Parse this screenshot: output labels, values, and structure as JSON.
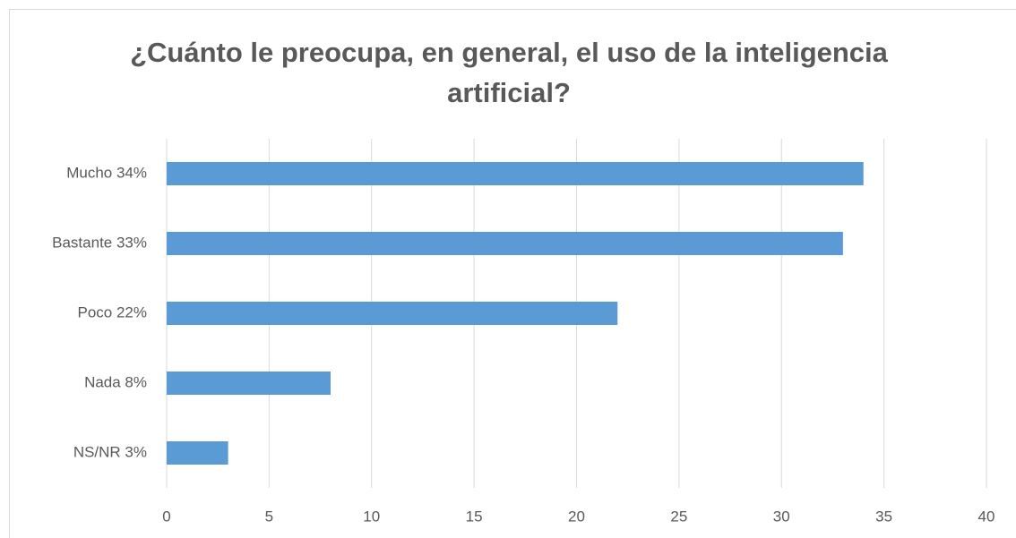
{
  "chart_data": {
    "type": "barh",
    "title": "¿Cuánto le preocupa, en general, el uso de la inteligencia artificial?",
    "categories": [
      "Mucho 34%",
      "Bastante 33%",
      "Poco 22%",
      "Nada 8%",
      "NS/NR 3%"
    ],
    "values": [
      34,
      33,
      22,
      8,
      3
    ],
    "color": "#5b9bd5",
    "xlim": [
      0,
      40
    ],
    "xticks": [
      0,
      5,
      10,
      15,
      20,
      25,
      30,
      35,
      40
    ],
    "grid": true
  }
}
